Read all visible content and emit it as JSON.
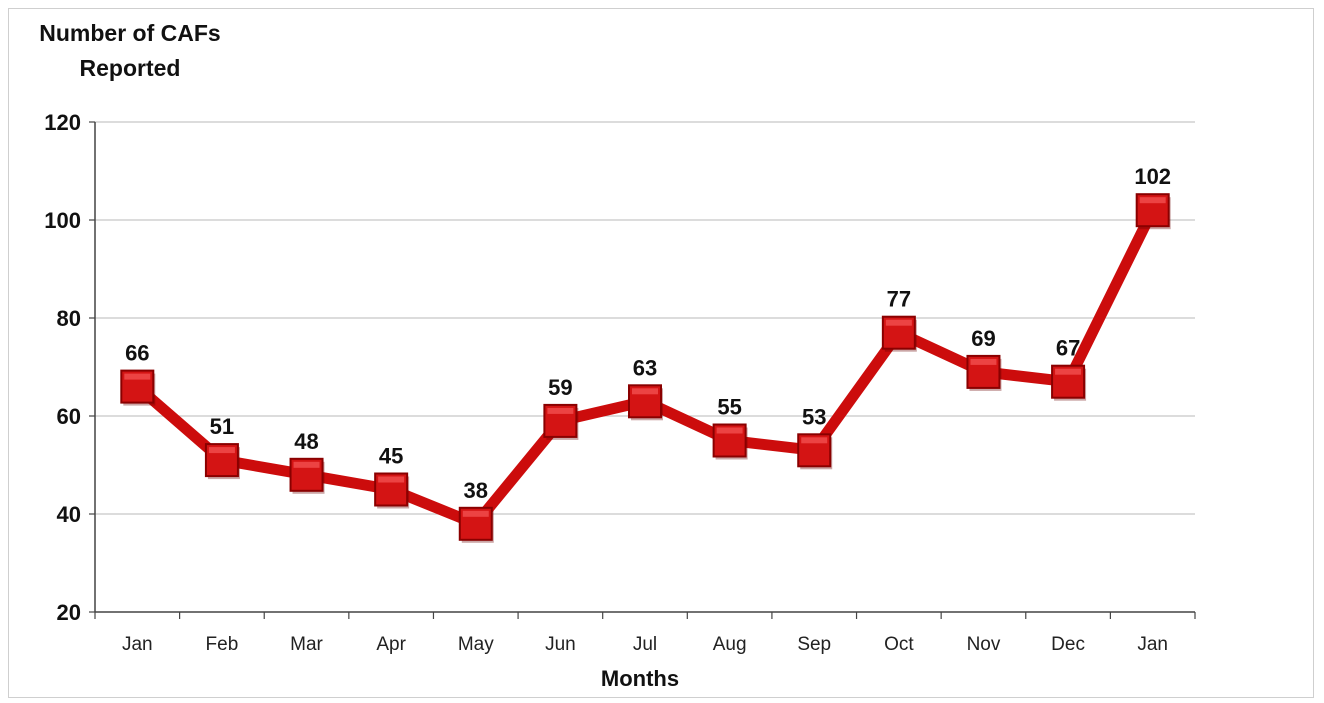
{
  "chart_data": {
    "type": "line",
    "ylabel": [
      "Number of CAFs",
      "Reported"
    ],
    "xlabel": "Months",
    "categories": [
      "Jan",
      "Feb",
      "Mar",
      "Apr",
      "May",
      "Jun",
      "Jul",
      "Aug",
      "Sep",
      "Oct",
      "Nov",
      "Dec",
      "Jan"
    ],
    "series": [
      {
        "values": [
          66,
          51,
          48,
          45,
          38,
          59,
          63,
          55,
          53,
          77,
          69,
          67,
          102
        ]
      }
    ],
    "ylim": [
      20,
      120
    ],
    "yticks": [
      20,
      40,
      60,
      80,
      100,
      120
    ],
    "grid": true,
    "legend": "none",
    "colors": {
      "line": "#cc0c0c",
      "marker": "#d41414",
      "marker_edge": "#8a0000",
      "grid": "#c8c8c8",
      "axis": "#444444"
    }
  }
}
